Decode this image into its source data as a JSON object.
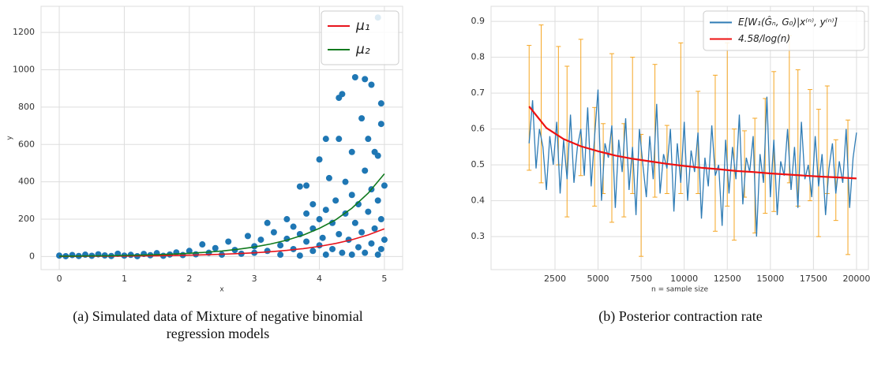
{
  "chart_data": [
    {
      "type": "scatter",
      "caption": "(a) Simulated data of Mixture of negative binomial regression models",
      "x_label": "x",
      "y_label": "y",
      "xlim": [
        -0.28,
        5.28
      ],
      "ylim": [
        -70,
        1340
      ],
      "xticks": [
        0,
        1,
        2,
        3,
        4,
        5
      ],
      "yticks": [
        0,
        200,
        400,
        600,
        800,
        1000,
        1200
      ],
      "grid": true,
      "legend": "upper right",
      "points": {
        "color": "#1f77b4",
        "x": [
          0,
          0.1,
          0.2,
          0.3,
          0.4,
          0.5,
          0.6,
          0.7,
          0.8,
          0.9,
          1.0,
          1.1,
          1.2,
          1.3,
          1.4,
          1.5,
          1.6,
          1.7,
          1.8,
          1.9,
          2.0,
          2.1,
          2.2,
          2.3,
          2.4,
          2.5,
          2.6,
          2.7,
          2.8,
          2.9,
          3.0,
          3.0,
          3.1,
          3.2,
          3.2,
          3.3,
          3.4,
          3.4,
          3.5,
          3.5,
          3.6,
          3.6,
          3.7,
          3.7,
          3.7,
          3.8,
          3.8,
          3.8,
          3.9,
          3.9,
          3.9,
          4.0,
          4.0,
          4.0,
          4.05,
          4.1,
          4.1,
          4.1,
          4.15,
          4.2,
          4.2,
          4.25,
          4.3,
          4.3,
          4.3,
          4.35,
          4.35,
          4.4,
          4.4,
          4.45,
          4.5,
          4.5,
          4.5,
          4.55,
          4.55,
          4.6,
          4.6,
          4.65,
          4.65,
          4.7,
          4.7,
          4.7,
          4.75,
          4.75,
          4.8,
          4.8,
          4.8,
          4.85,
          4.85,
          4.9,
          4.9,
          4.9,
          4.9,
          4.95,
          4.95,
          4.95,
          4.95,
          5.0,
          5.0
        ],
        "y": [
          5,
          2,
          8,
          3,
          10,
          4,
          12,
          6,
          3,
          15,
          5,
          9,
          2,
          14,
          7,
          18,
          4,
          11,
          22,
          8,
          30,
          12,
          65,
          20,
          45,
          10,
          80,
          35,
          15,
          110,
          55,
          20,
          90,
          180,
          30,
          130,
          60,
          10,
          200,
          95,
          160,
          40,
          375,
          120,
          5,
          230,
          80,
          380,
          280,
          30,
          150,
          200,
          520,
          60,
          100,
          630,
          250,
          10,
          420,
          180,
          40,
          300,
          850,
          630,
          120,
          870,
          20,
          400,
          230,
          90,
          560,
          330,
          10,
          960,
          180,
          280,
          50,
          740,
          130,
          950,
          460,
          20,
          630,
          240,
          920,
          360,
          70,
          560,
          150,
          1280,
          540,
          300,
          10,
          820,
          710,
          200,
          40,
          380,
          90
        ]
      },
      "series": [
        {
          "name": "μ₁",
          "color": "#e8141c",
          "x": [
            0,
            0.25,
            0.5,
            0.75,
            1,
            1.25,
            1.5,
            1.75,
            2,
            2.25,
            2.5,
            2.75,
            3,
            3.25,
            3.5,
            3.75,
            4,
            4.25,
            4.5,
            4.75,
            5
          ],
          "values": [
            1,
            1.28,
            1.65,
            2.12,
            2.72,
            3.49,
            4.48,
            5.75,
            7.39,
            9.49,
            12.2,
            15.6,
            20.1,
            25.8,
            33.1,
            42.5,
            54.6,
            70.1,
            90.0,
            115.6,
            148.4
          ]
        },
        {
          "name": "μ₂",
          "color": "#117a1e",
          "x": [
            0,
            0.25,
            0.5,
            0.75,
            1,
            1.25,
            1.5,
            1.75,
            2,
            2.25,
            2.5,
            2.75,
            3,
            3.25,
            3.5,
            3.75,
            4,
            4.25,
            4.5,
            4.75,
            5
          ],
          "values": [
            2,
            2.62,
            3.43,
            4.5,
            5.89,
            7.72,
            10.1,
            13.3,
            17.3,
            22.7,
            29.8,
            39.0,
            51.1,
            67.0,
            87.8,
            115,
            151,
            197,
            259,
            339,
            443
          ]
        }
      ]
    },
    {
      "type": "line",
      "caption": "(b) Posterior contraction rate",
      "x_label": "n = sample size",
      "xlim": [
        -1210,
        20690
      ],
      "ylim": [
        0.208,
        0.942
      ],
      "xticks": [
        2500,
        5000,
        7500,
        10000,
        12500,
        15000,
        17500,
        20000
      ],
      "yticks": [
        0.3,
        0.4,
        0.5,
        0.6,
        0.7,
        0.8,
        0.9
      ],
      "grid": true,
      "legend": "upper right",
      "series": [
        {
          "name": "E[W₁(Ĝₙ, G₀)|x⁽ⁿ⁾, y⁽ⁿ⁾]",
          "color": "#2f7cb5",
          "width": 1.3,
          "x": [
            1000,
            1200,
            1400,
            1600,
            1800,
            2000,
            2200,
            2400,
            2600,
            2800,
            3000,
            3200,
            3400,
            3600,
            3800,
            4000,
            4200,
            4400,
            4600,
            4800,
            5000,
            5200,
            5400,
            5600,
            5800,
            6000,
            6200,
            6400,
            6600,
            6800,
            7000,
            7200,
            7400,
            7600,
            7800,
            8000,
            8200,
            8400,
            8600,
            8800,
            9000,
            9200,
            9400,
            9600,
            9800,
            10000,
            10200,
            10400,
            10600,
            10800,
            11000,
            11200,
            11400,
            11600,
            11800,
            12000,
            12200,
            12400,
            12600,
            12800,
            13000,
            13200,
            13400,
            13600,
            13800,
            14000,
            14200,
            14400,
            14600,
            14800,
            15000,
            15200,
            15400,
            15600,
            15800,
            16000,
            16200,
            16400,
            16600,
            16800,
            17000,
            17200,
            17400,
            17600,
            17800,
            18000,
            18200,
            18400,
            18600,
            18800,
            19000,
            19200,
            19400,
            19600,
            19800,
            20000
          ],
          "values": [
            0.56,
            0.68,
            0.49,
            0.6,
            0.55,
            0.43,
            0.58,
            0.5,
            0.62,
            0.42,
            0.57,
            0.46,
            0.64,
            0.45,
            0.55,
            0.6,
            0.47,
            0.66,
            0.44,
            0.58,
            0.71,
            0.4,
            0.56,
            0.52,
            0.61,
            0.38,
            0.57,
            0.48,
            0.63,
            0.43,
            0.55,
            0.36,
            0.6,
            0.5,
            0.41,
            0.58,
            0.46,
            0.67,
            0.42,
            0.53,
            0.49,
            0.6,
            0.37,
            0.56,
            0.45,
            0.62,
            0.4,
            0.54,
            0.48,
            0.59,
            0.35,
            0.52,
            0.44,
            0.61,
            0.47,
            0.5,
            0.33,
            0.57,
            0.42,
            0.55,
            0.46,
            0.64,
            0.39,
            0.52,
            0.48,
            0.58,
            0.3,
            0.53,
            0.45,
            0.69,
            0.41,
            0.57,
            0.36,
            0.51,
            0.47,
            0.6,
            0.43,
            0.55,
            0.38,
            0.62,
            0.46,
            0.5,
            0.41,
            0.58,
            0.44,
            0.53,
            0.36,
            0.49,
            0.56,
            0.42,
            0.51,
            0.45,
            0.6,
            0.38,
            0.52,
            0.59
          ]
        },
        {
          "name": "4.58/log(n)",
          "color": "#ee1111",
          "width": 2.2,
          "x": [
            1000,
            2000,
            3000,
            4000,
            5000,
            6000,
            7000,
            8000,
            9000,
            10000,
            11000,
            12000,
            13000,
            14000,
            15000,
            16000,
            17000,
            18000,
            19000,
            20000
          ],
          "values": [
            0.663,
            0.603,
            0.572,
            0.552,
            0.538,
            0.526,
            0.517,
            0.51,
            0.503,
            0.497,
            0.492,
            0.488,
            0.483,
            0.48,
            0.476,
            0.473,
            0.47,
            0.467,
            0.465,
            0.462
          ]
        }
      ],
      "errorbars": {
        "color": "#f5a623",
        "x": [
          1000,
          1700,
          2700,
          3200,
          4000,
          4800,
          5300,
          5800,
          6500,
          7000,
          7500,
          8300,
          9000,
          9800,
          10800,
          11800,
          12500,
          12900,
          13500,
          14100,
          14700,
          15200,
          16100,
          16600,
          17300,
          17800,
          18300,
          18800,
          19500
        ],
        "low": [
          0.485,
          0.45,
          0.5,
          0.355,
          0.47,
          0.385,
          0.42,
          0.34,
          0.355,
          0.42,
          0.245,
          0.41,
          0.42,
          0.42,
          0.42,
          0.315,
          0.385,
          0.29,
          0.41,
          0.31,
          0.365,
          0.37,
          0.45,
          0.385,
          0.4,
          0.3,
          0.42,
          0.345,
          0.25
        ],
        "high": [
          0.833,
          0.89,
          0.83,
          0.775,
          0.85,
          0.66,
          0.615,
          0.81,
          0.615,
          0.8,
          0.585,
          0.78,
          0.61,
          0.84,
          0.705,
          0.75,
          0.84,
          0.6,
          0.595,
          0.63,
          0.685,
          0.76,
          0.86,
          0.765,
          0.71,
          0.655,
          0.72,
          0.57,
          0.625
        ]
      }
    }
  ]
}
